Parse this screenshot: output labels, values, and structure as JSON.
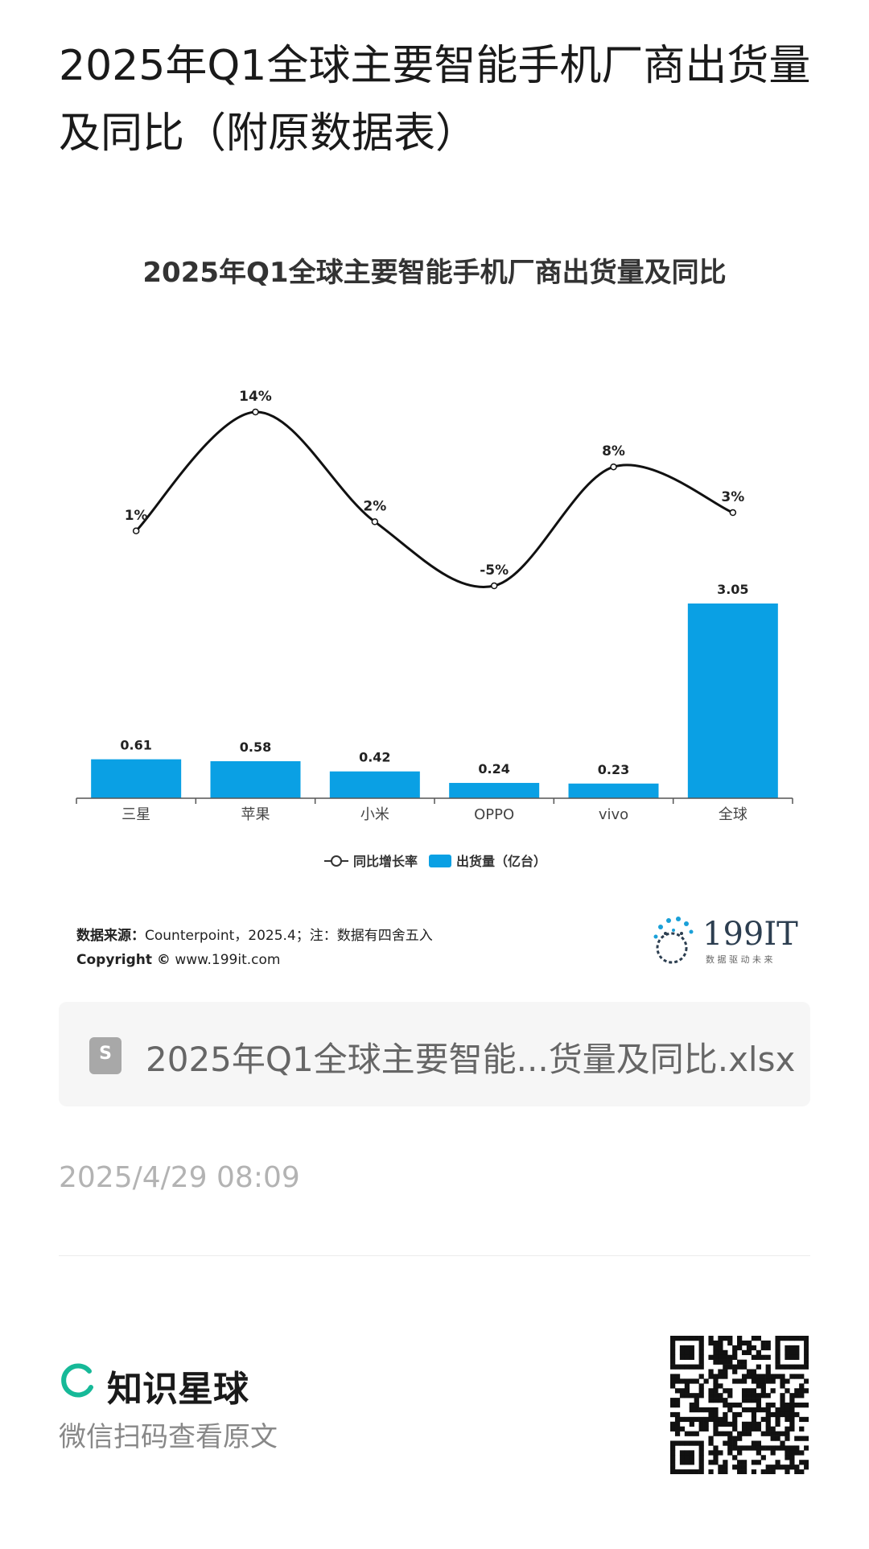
{
  "page": {
    "title": "2025年Q1全球主要智能手机厂商出货量及同比（附原数据表）"
  },
  "chart_data": {
    "type": "bar",
    "title": "2025年Q1全球主要智能手机厂商出货量及同比",
    "categories": [
      "三星",
      "苹果",
      "小米",
      "OPPO",
      "vivo",
      "全球"
    ],
    "series": [
      {
        "name": "出货量（亿台）",
        "type": "bar",
        "values": [
          0.61,
          0.58,
          0.42,
          0.24,
          0.23,
          3.05
        ],
        "labels": [
          "0.61",
          "0.58",
          "0.42",
          "0.24",
          "0.23",
          "3.05"
        ],
        "color": "#0aa0e4"
      },
      {
        "name": "同比增长率",
        "type": "line",
        "values": [
          1,
          14,
          2,
          -5,
          8,
          3
        ],
        "labels": [
          "1%",
          "14%",
          "2%",
          "-5%",
          "8%",
          "3%"
        ],
        "color": "#111111"
      }
    ],
    "legend": {
      "position": "bottom",
      "line_label": "同比增长率",
      "bar_label": "出货量（亿台）"
    },
    "bar_ylim": [
      0,
      3.05
    ],
    "line_ylim": [
      -5,
      14
    ],
    "grid": false
  },
  "chart_footer": {
    "source_label": "数据来源：",
    "source_text": "Counterpoint，2025.4；注：数据有四舍五入",
    "copyright_label": "Copyright ©",
    "copyright_site": "www.199it.com",
    "brand": "199IT",
    "brand_tagline": "数 据 驱 动 未 来"
  },
  "attachment": {
    "icon": "sheet-file-icon",
    "icon_letter": "S",
    "file_name": "2025年Q1全球主要智能...货量及同比.xlsx"
  },
  "meta": {
    "timestamp": "2025/4/29 08:09"
  },
  "promo": {
    "app_name": "知识星球",
    "scan_tip": "微信扫码查看原文"
  }
}
